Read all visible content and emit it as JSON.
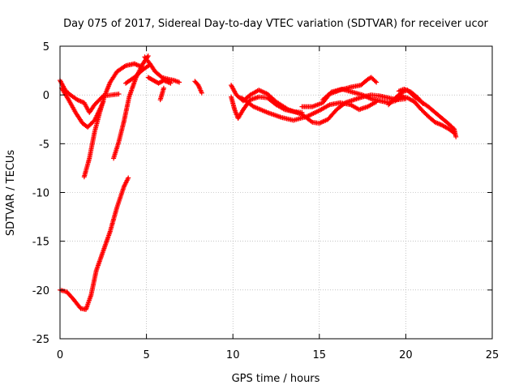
{
  "chart_data": {
    "type": "scatter",
    "title": "Day 075 of 2017, Sidereal Day-to-day VTEC variation (SDTVAR) for receiver ucor",
    "xlabel": "GPS time / hours",
    "ylabel": "SDTVAR / TECUs",
    "xlim": [
      0,
      25
    ],
    "ylim": [
      -25,
      5
    ],
    "xticks": [
      0,
      5,
      10,
      15,
      20,
      25
    ],
    "yticks": [
      -25,
      -20,
      -15,
      -10,
      -5,
      0,
      5
    ],
    "xtick_labels": [
      "0",
      "5",
      "10",
      "15",
      "20",
      "25"
    ],
    "ytick_labels": [
      "-25",
      "-20",
      "-15",
      "-10",
      "-5",
      "0",
      "5"
    ],
    "grid": true,
    "marker": "+",
    "color": "#ff0000",
    "series": [
      {
        "name": "trace-1",
        "points": [
          [
            0.0,
            1.5
          ],
          [
            0.3,
            0.5
          ],
          [
            0.6,
            0.0
          ],
          [
            1.0,
            -0.5
          ],
          [
            1.4,
            -0.8
          ],
          [
            1.7,
            -1.8
          ],
          [
            2.0,
            -1.0
          ],
          [
            2.5,
            -0.1
          ],
          [
            3.0,
            0.0
          ],
          [
            3.4,
            0.1
          ]
        ]
      },
      {
        "name": "trace-2",
        "points": [
          [
            0.1,
            0.7
          ],
          [
            0.5,
            -0.5
          ],
          [
            0.9,
            -1.8
          ],
          [
            1.3,
            -2.9
          ],
          [
            1.6,
            -3.3
          ],
          [
            2.0,
            -2.6
          ],
          [
            2.3,
            -1.5
          ],
          [
            2.5,
            -0.7
          ]
        ]
      },
      {
        "name": "trace-3",
        "points": [
          [
            1.4,
            -8.4
          ],
          [
            1.7,
            -6.5
          ],
          [
            2.0,
            -3.8
          ],
          [
            2.3,
            -1.8
          ],
          [
            2.6,
            0.0
          ],
          [
            2.9,
            1.3
          ],
          [
            3.3,
            2.4
          ],
          [
            3.8,
            3.0
          ],
          [
            4.3,
            3.2
          ],
          [
            4.7,
            2.9
          ]
        ]
      },
      {
        "name": "trace-4",
        "points": [
          [
            3.1,
            -6.5
          ],
          [
            3.4,
            -4.8
          ],
          [
            3.7,
            -2.7
          ],
          [
            4.0,
            -0.2
          ],
          [
            4.4,
            1.8
          ],
          [
            4.8,
            3.2
          ],
          [
            5.1,
            4.0
          ]
        ]
      },
      {
        "name": "trace-5",
        "points": [
          [
            3.8,
            1.2
          ],
          [
            4.3,
            1.8
          ],
          [
            4.8,
            2.6
          ],
          [
            5.2,
            3.1
          ]
        ]
      },
      {
        "name": "trace-6",
        "points": [
          [
            0.0,
            -20.0
          ],
          [
            0.4,
            -20.2
          ],
          [
            0.8,
            -21.0
          ],
          [
            1.2,
            -21.9
          ],
          [
            1.5,
            -22.0
          ],
          [
            1.8,
            -20.5
          ],
          [
            2.1,
            -18.0
          ],
          [
            2.5,
            -16.0
          ],
          [
            2.9,
            -14.0
          ],
          [
            3.3,
            -11.5
          ],
          [
            3.7,
            -9.4
          ],
          [
            3.95,
            -8.5
          ]
        ]
      },
      {
        "name": "trace-7",
        "points": [
          [
            4.9,
            3.9
          ],
          [
            5.2,
            3.2
          ],
          [
            5.5,
            2.4
          ],
          [
            5.9,
            1.8
          ],
          [
            6.3,
            1.6
          ],
          [
            6.6,
            1.5
          ],
          [
            6.9,
            1.3
          ]
        ]
      },
      {
        "name": "trace-8",
        "points": [
          [
            5.1,
            1.8
          ],
          [
            5.4,
            1.5
          ],
          [
            5.7,
            1.2
          ],
          [
            6.0,
            1.5
          ],
          [
            6.4,
            1.2
          ]
        ]
      },
      {
        "name": "trace-9",
        "points": [
          [
            5.8,
            -0.5
          ],
          [
            6.0,
            0.7
          ]
        ]
      },
      {
        "name": "trace-10",
        "points": [
          [
            7.8,
            1.4
          ],
          [
            8.0,
            1.0
          ],
          [
            8.2,
            0.2
          ]
        ]
      },
      {
        "name": "trace-11",
        "points": [
          [
            9.9,
            -0.2
          ],
          [
            10.1,
            -1.5
          ],
          [
            10.3,
            -2.4
          ],
          [
            10.6,
            -1.5
          ],
          [
            11.0,
            -0.5
          ],
          [
            11.5,
            -0.2
          ],
          [
            12.0,
            -0.3
          ],
          [
            12.5,
            -1.0
          ],
          [
            13.0,
            -1.5
          ],
          [
            13.5,
            -1.7
          ],
          [
            14.0,
            -1.8
          ]
        ]
      },
      {
        "name": "trace-12",
        "points": [
          [
            9.9,
            1.0
          ],
          [
            10.2,
            0.0
          ],
          [
            10.6,
            -0.6
          ],
          [
            11.0,
            0.0
          ],
          [
            11.5,
            0.5
          ],
          [
            12.0,
            0.1
          ],
          [
            12.5,
            -0.7
          ],
          [
            13.2,
            -1.5
          ],
          [
            14.0,
            -2.0
          ],
          [
            14.6,
            -2.8
          ],
          [
            15.0,
            -2.9
          ],
          [
            15.5,
            -2.5
          ],
          [
            16.0,
            -1.5
          ],
          [
            16.5,
            -0.8
          ],
          [
            17.0,
            -0.5
          ],
          [
            17.5,
            -0.2
          ],
          [
            18.0,
            0.0
          ],
          [
            18.5,
            -0.1
          ],
          [
            19.0,
            -0.3
          ],
          [
            19.5,
            -0.5
          ],
          [
            20.0,
            -0.4
          ]
        ]
      },
      {
        "name": "trace-13",
        "points": [
          [
            10.5,
            -0.3
          ],
          [
            11.2,
            -1.2
          ],
          [
            12.0,
            -1.8
          ],
          [
            12.8,
            -2.3
          ],
          [
            13.5,
            -2.6
          ],
          [
            14.3,
            -2.2
          ],
          [
            15.0,
            -1.6
          ],
          [
            15.6,
            -1.0
          ],
          [
            16.2,
            -0.8
          ],
          [
            16.8,
            -1.0
          ],
          [
            17.3,
            -1.5
          ],
          [
            17.8,
            -1.2
          ],
          [
            18.3,
            -0.7
          ]
        ]
      },
      {
        "name": "trace-14",
        "points": [
          [
            14.0,
            -1.2
          ],
          [
            14.6,
            -1.2
          ],
          [
            15.2,
            -0.8
          ],
          [
            15.6,
            0.1
          ],
          [
            16.2,
            0.5
          ],
          [
            16.8,
            0.8
          ],
          [
            17.4,
            1.0
          ],
          [
            17.8,
            1.6
          ],
          [
            18.0,
            1.8
          ],
          [
            18.3,
            1.3
          ]
        ]
      },
      {
        "name": "trace-15",
        "points": [
          [
            15.2,
            -0.5
          ],
          [
            15.7,
            0.3
          ],
          [
            16.3,
            0.6
          ],
          [
            16.9,
            0.3
          ],
          [
            17.5,
            0.0
          ],
          [
            18.0,
            -0.4
          ],
          [
            18.5,
            -0.6
          ],
          [
            19.0,
            -0.8
          ],
          [
            19.4,
            -0.6
          ],
          [
            19.8,
            -0.1
          ]
        ]
      },
      {
        "name": "trace-16",
        "points": [
          [
            19.0,
            -1.0
          ],
          [
            19.4,
            -0.3
          ],
          [
            19.8,
            0.3
          ],
          [
            20.1,
            0.5
          ],
          [
            20.5,
            -0.2
          ],
          [
            20.9,
            -0.7
          ],
          [
            21.3,
            -1.2
          ],
          [
            21.7,
            -1.8
          ],
          [
            22.1,
            -2.4
          ],
          [
            22.5,
            -3.0
          ],
          [
            22.8,
            -3.5
          ],
          [
            22.9,
            -4.3
          ]
        ]
      },
      {
        "name": "trace-17",
        "points": [
          [
            19.7,
            -0.1
          ],
          [
            20.1,
            -0.3
          ],
          [
            20.5,
            -0.7
          ],
          [
            20.9,
            -1.5
          ],
          [
            21.3,
            -2.2
          ],
          [
            21.7,
            -2.8
          ],
          [
            22.1,
            -3.1
          ],
          [
            22.5,
            -3.5
          ],
          [
            22.8,
            -3.9
          ]
        ]
      },
      {
        "name": "trace-18",
        "points": [
          [
            19.6,
            0.4
          ],
          [
            19.9,
            0.6
          ],
          [
            20.3,
            0.3
          ],
          [
            20.7,
            -0.3
          ],
          [
            21.0,
            -0.9
          ]
        ]
      }
    ]
  }
}
